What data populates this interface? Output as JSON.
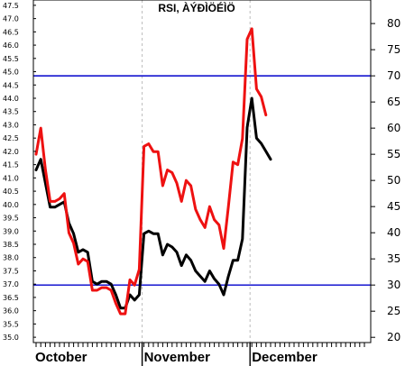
{
  "chart_data": {
    "type": "line",
    "title": "RSI, ÀÝÐÌÖÉÌÖ",
    "months": [
      "October",
      "November",
      "December"
    ],
    "left_axis": {
      "range": [
        34.8,
        47.7
      ],
      "ticks": [
        "35.0",
        "35.5",
        "36.0",
        "36.5",
        "37.0",
        "37.5",
        "38.0",
        "38.5",
        "39.0",
        "39.5",
        "40.0",
        "40.5",
        "41.0",
        "41.5",
        "42.0",
        "42.5",
        "43.0",
        "43.5",
        "44.0",
        "44.5",
        "45.0",
        "45.5",
        "46.0",
        "46.5",
        "47.0",
        "47.5"
      ]
    },
    "right_axis": {
      "range": [
        19,
        84.5
      ],
      "ticks": [
        "20",
        "25",
        "30",
        "35",
        "40",
        "45",
        "50",
        "55",
        "60",
        "65",
        "70",
        "75",
        "80"
      ]
    },
    "reference_lines": [
      70,
      30
    ],
    "colors": {
      "price": "#000000",
      "rsi": "#ee1111",
      "reference": "#0000cc",
      "grid": "#bbbbbb"
    },
    "x_range": [
      0,
      70
    ],
    "month_boundaries": [
      0,
      23,
      46
    ],
    "series": [
      {
        "axis": "left",
        "color": "#000000",
        "values": [
          {
            "x": 0,
            "y": 41.3
          },
          {
            "x": 1,
            "y": 41.7
          },
          {
            "x": 2,
            "y": 40.8
          },
          {
            "x": 3,
            "y": 39.9
          },
          {
            "x": 4,
            "y": 39.9
          },
          {
            "x": 5,
            "y": 40.0
          },
          {
            "x": 6,
            "y": 40.1
          },
          {
            "x": 7,
            "y": 39.3
          },
          {
            "x": 8,
            "y": 38.9
          },
          {
            "x": 9,
            "y": 38.2
          },
          {
            "x": 10,
            "y": 38.3
          },
          {
            "x": 11,
            "y": 38.2
          },
          {
            "x": 12,
            "y": 37.1
          },
          {
            "x": 13,
            "y": 37.0
          },
          {
            "x": 14,
            "y": 37.1
          },
          {
            "x": 15,
            "y": 37.1
          },
          {
            "x": 16,
            "y": 37.0
          },
          {
            "x": 17,
            "y": 36.6
          },
          {
            "x": 18,
            "y": 36.1
          },
          {
            "x": 19,
            "y": 36.1
          },
          {
            "x": 20,
            "y": 36.6
          },
          {
            "x": 21,
            "y": 36.4
          },
          {
            "x": 22,
            "y": 36.6
          },
          {
            "x": 23,
            "y": 38.9
          },
          {
            "x": 24,
            "y": 39.0
          },
          {
            "x": 25,
            "y": 38.9
          },
          {
            "x": 26,
            "y": 38.9
          },
          {
            "x": 27,
            "y": 38.1
          },
          {
            "x": 28,
            "y": 38.5
          },
          {
            "x": 29,
            "y": 38.4
          },
          {
            "x": 30,
            "y": 38.2
          },
          {
            "x": 31,
            "y": 37.7
          },
          {
            "x": 32,
            "y": 38.1
          },
          {
            "x": 33,
            "y": 37.9
          },
          {
            "x": 34,
            "y": 37.5
          },
          {
            "x": 35,
            "y": 37.3
          },
          {
            "x": 36,
            "y": 37.1
          },
          {
            "x": 37,
            "y": 37.5
          },
          {
            "x": 38,
            "y": 37.2
          },
          {
            "x": 39,
            "y": 37.0
          },
          {
            "x": 40,
            "y": 36.6
          },
          {
            "x": 41,
            "y": 37.3
          },
          {
            "x": 42,
            "y": 37.9
          },
          {
            "x": 43,
            "y": 37.9
          },
          {
            "x": 44,
            "y": 38.7
          },
          {
            "x": 45,
            "y": 42.9
          },
          {
            "x": 46,
            "y": 44.0
          },
          {
            "x": 47,
            "y": 42.5
          },
          {
            "x": 48,
            "y": 42.3
          },
          {
            "x": 49,
            "y": 42.0
          },
          {
            "x": 50,
            "y": 41.7
          }
        ]
      },
      {
        "axis": "right",
        "color": "#ee1111",
        "values": [
          {
            "x": 0,
            "y": 55
          },
          {
            "x": 1,
            "y": 60
          },
          {
            "x": 2,
            "y": 52
          },
          {
            "x": 3,
            "y": 46
          },
          {
            "x": 4,
            "y": 46
          },
          {
            "x": 5,
            "y": 46.5
          },
          {
            "x": 6,
            "y": 47.5
          },
          {
            "x": 7,
            "y": 40
          },
          {
            "x": 8,
            "y": 38
          },
          {
            "x": 9,
            "y": 34
          },
          {
            "x": 10,
            "y": 35
          },
          {
            "x": 11,
            "y": 34.5
          },
          {
            "x": 12,
            "y": 29
          },
          {
            "x": 13,
            "y": 29
          },
          {
            "x": 14,
            "y": 29.5
          },
          {
            "x": 15,
            "y": 29.5
          },
          {
            "x": 16,
            "y": 29
          },
          {
            "x": 17,
            "y": 26.5
          },
          {
            "x": 18,
            "y": 24.5
          },
          {
            "x": 19,
            "y": 24.5
          },
          {
            "x": 20,
            "y": 31
          },
          {
            "x": 21,
            "y": 30
          },
          {
            "x": 22,
            "y": 33
          },
          {
            "x": 23,
            "y": 56.5
          },
          {
            "x": 24,
            "y": 57
          },
          {
            "x": 25,
            "y": 55.5
          },
          {
            "x": 26,
            "y": 55.5
          },
          {
            "x": 27,
            "y": 49
          },
          {
            "x": 28,
            "y": 52
          },
          {
            "x": 29,
            "y": 51.5
          },
          {
            "x": 30,
            "y": 49.5
          },
          {
            "x": 31,
            "y": 46
          },
          {
            "x": 32,
            "y": 50
          },
          {
            "x": 33,
            "y": 49
          },
          {
            "x": 34,
            "y": 44.5
          },
          {
            "x": 35,
            "y": 42.5
          },
          {
            "x": 36,
            "y": 41
          },
          {
            "x": 37,
            "y": 45
          },
          {
            "x": 38,
            "y": 42.5
          },
          {
            "x": 39,
            "y": 41.5
          },
          {
            "x": 40,
            "y": 37
          },
          {
            "x": 41,
            "y": 45
          },
          {
            "x": 42,
            "y": 53.5
          },
          {
            "x": 43,
            "y": 53
          },
          {
            "x": 44,
            "y": 58
          },
          {
            "x": 45,
            "y": 77
          },
          {
            "x": 46,
            "y": 79
          },
          {
            "x": 47,
            "y": 67.5
          },
          {
            "x": 48,
            "y": 66
          },
          {
            "x": 49,
            "y": 62.5
          }
        ]
      }
    ]
  }
}
